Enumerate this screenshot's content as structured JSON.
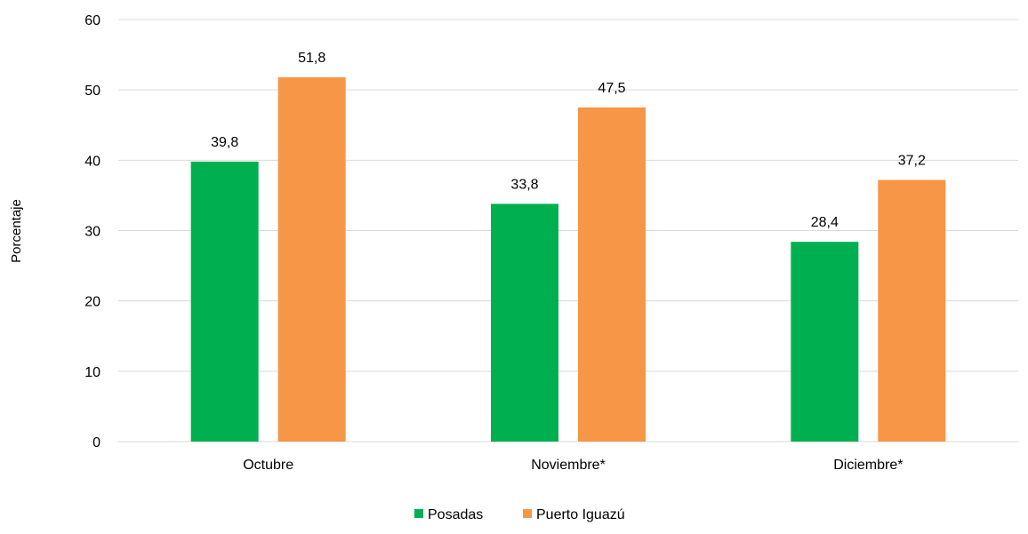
{
  "chart_data": {
    "type": "bar",
    "title": "",
    "xlabel": "",
    "ylabel": "Porcentaje",
    "categories": [
      "Octubre",
      "Noviembre*",
      "Diciembre*"
    ],
    "series": [
      {
        "name": "Posadas",
        "values": [
          39.8,
          33.8,
          28.4
        ],
        "labels": [
          "39,8",
          "33,8",
          "28,4"
        ],
        "color": "#00b050"
      },
      {
        "name": "Puerto Iguazú",
        "values": [
          51.8,
          47.5,
          37.2
        ],
        "labels": [
          "51,8",
          "47,5",
          "37,2"
        ],
        "color": "#f79646"
      }
    ],
    "ylim": [
      0,
      60
    ],
    "yticks": [
      0,
      10,
      20,
      30,
      40,
      50,
      60
    ],
    "grid": true,
    "gridColor": "#d9d9d9",
    "legend": "bottom-center"
  }
}
